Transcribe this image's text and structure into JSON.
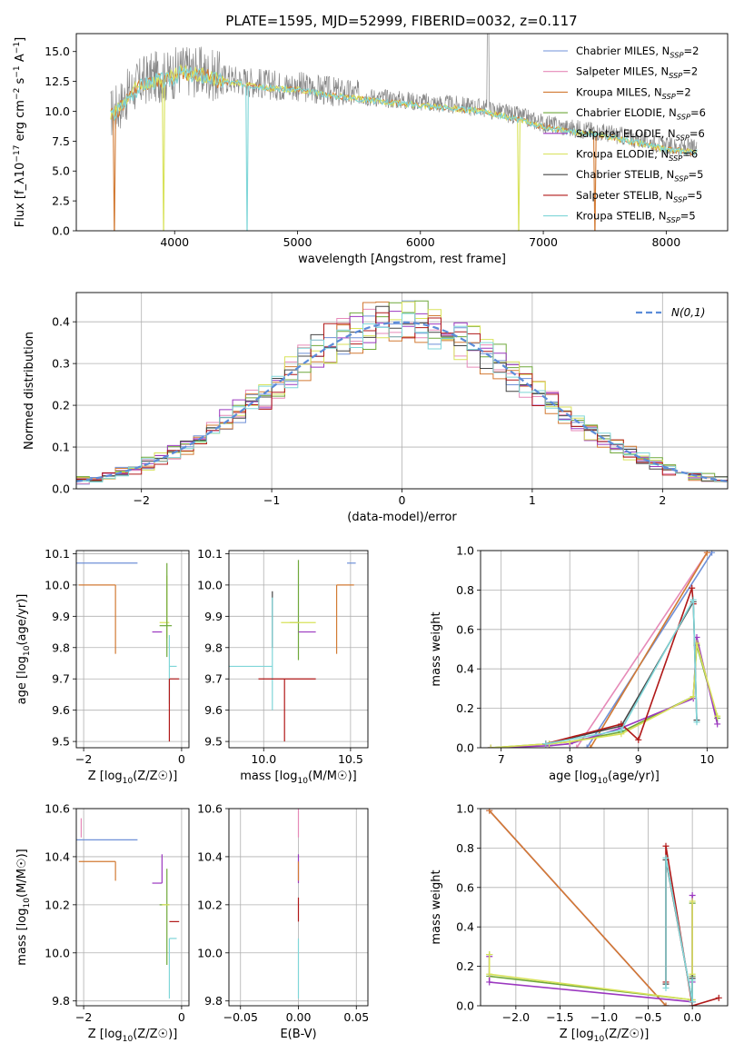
{
  "figure": {
    "title": "PLATE=1595, MJD=52999, FIBERID=0032, z=0.117"
  },
  "series_styles": [
    {
      "name": "Chabrier MILES",
      "legend": "Chabrier MILES, N_SSP=2",
      "color": "#6f90d8"
    },
    {
      "name": "Salpeter MILES",
      "legend": "Salpeter MILES, N_SSP=2",
      "color": "#e68ab8"
    },
    {
      "name": "Kroupa MILES",
      "legend": "Kroupa MILES, N_SSP=2",
      "color": "#d27a33"
    },
    {
      "name": "Chabrier ELODIE",
      "legend": "Chabrier ELODIE, N_SSP=6",
      "color": "#6fa83a"
    },
    {
      "name": "Salpeter ELODIE",
      "legend": "Salpeter ELODIE, N_SSP=6",
      "color": "#9b38c0"
    },
    {
      "name": "Kroupa ELODIE",
      "legend": "Kroupa ELODIE, N_SSP=6",
      "color": "#d8e25a"
    },
    {
      "name": "Chabrier STELIB",
      "legend": "Chabrier STELIB, N_SSP=5",
      "color": "#444444"
    },
    {
      "name": "Salpeter STELIB",
      "legend": "Salpeter STELIB, N_SSP=5",
      "color": "#b01818"
    },
    {
      "name": "Kroupa STELIB",
      "legend": "Kroupa STELIB, N_SSP=5",
      "color": "#7fd6d8"
    }
  ],
  "chart_data": [
    {
      "id": "spectrum",
      "type": "line",
      "xlabel": "wavelength [Angstrom, rest frame]",
      "ylabel": "Flux [f_λ10^-17 erg cm^-2 s^-1 A^-1]",
      "xlim": [
        3200,
        8500
      ],
      "ylim": [
        0,
        16.5
      ],
      "xticks": [
        4000,
        5000,
        6000,
        7000,
        8000
      ],
      "yticks": [
        0.0,
        2.5,
        5.0,
        7.5,
        10.0,
        12.5,
        15.0
      ],
      "grid": false,
      "legend": "top-right",
      "observed": {
        "color": "#888888",
        "x": [
          3480,
          3550,
          3650,
          3750,
          3850,
          3950,
          4050,
          4200,
          4400,
          4600,
          4800,
          5000,
          5300,
          5600,
          5900,
          6200,
          6500,
          6800,
          7000,
          7200,
          7400,
          7600,
          7800,
          8000,
          8200
        ],
        "y": [
          9.8,
          10.5,
          11.8,
          12.6,
          12.9,
          12.9,
          13.5,
          13.3,
          12.8,
          12.5,
          12.2,
          12.1,
          11.6,
          11.2,
          10.9,
          10.6,
          10.3,
          9.6,
          9.0,
          8.6,
          8.4,
          8.0,
          7.6,
          7.1,
          6.9
        ]
      },
      "model_dips": [
        {
          "x": 3510,
          "series": 2
        },
        {
          "x": 3910,
          "series": 5
        },
        {
          "x": 4590,
          "series": 8
        },
        {
          "x": 6800,
          "series": 5
        },
        {
          "x": 7420,
          "series": 2
        }
      ]
    },
    {
      "id": "residuals",
      "type": "step",
      "xlabel": "(data-model)/error",
      "ylabel": "Normed distribution",
      "xlim": [
        -2.5,
        2.5
      ],
      "ylim": [
        0,
        0.47
      ],
      "xticks": [
        -2,
        -1,
        0,
        1,
        2
      ],
      "yticks": [
        0.0,
        0.1,
        0.2,
        0.3,
        0.4
      ],
      "grid": true,
      "legend": "top-right",
      "gaussian": {
        "label": "N(0,1)",
        "color": "#5b8cd8"
      }
    },
    {
      "id": "z-age",
      "type": "errorbar",
      "xlabel": "Z [log10(Z/Z☉)]",
      "ylabel": "age  [log10(age/yr)]",
      "xlim": [
        -2.15,
        0.15
      ],
      "ylim": [
        9.48,
        10.11
      ],
      "xticks": [
        -2,
        0
      ],
      "yticks": [
        9.5,
        9.6,
        9.7,
        9.8,
        9.9,
        10.0,
        10.1
      ],
      "grid": true,
      "points": [
        {
          "s": 0,
          "x": -0.9,
          "xerr": [
            1.25,
            0.0
          ],
          "y": 10.07,
          "yerr": [
            0.0,
            0.0
          ]
        },
        {
          "s": 2,
          "x": -1.35,
          "xerr": [
            0.75,
            0.0
          ],
          "y": 10.0,
          "yerr": [
            0.22,
            0.0
          ]
        },
        {
          "s": 2,
          "x": -0.5,
          "xerr": [
            0.0,
            0.0
          ],
          "y": 10.0,
          "yerr": [
            0.0,
            0.0
          ]
        },
        {
          "s": 5,
          "x": -0.3,
          "xerr": [
            0.15,
            0.05
          ],
          "y": 9.88,
          "yerr": [
            0.05,
            0.15
          ]
        },
        {
          "s": 3,
          "x": -0.3,
          "xerr": [
            0.15,
            0.1
          ],
          "y": 9.87,
          "yerr": [
            0.1,
            0.2
          ]
        },
        {
          "s": 4,
          "x": -0.4,
          "xerr": [
            0.2,
            0.0
          ],
          "y": 9.85,
          "yerr": [
            0.0,
            0.0
          ]
        },
        {
          "s": 8,
          "x": -0.25,
          "xerr": [
            0.0,
            0.15
          ],
          "y": 9.74,
          "yerr": [
            0.12,
            0.1
          ]
        },
        {
          "s": 7,
          "x": -0.25,
          "xerr": [
            0.0,
            0.2
          ],
          "y": 9.7,
          "yerr": [
            0.2,
            0.0
          ]
        }
      ]
    },
    {
      "id": "mass-age",
      "type": "errorbar",
      "xlabel": "mass [log10(M/M☉)]",
      "ylabel": "",
      "xlim": [
        9.8,
        10.6
      ],
      "ylim": [
        9.48,
        10.11
      ],
      "xticks": [
        10.0,
        10.5
      ],
      "yticks": [
        9.5,
        9.6,
        9.7,
        9.8,
        9.9,
        10.0,
        10.1
      ],
      "grid": true,
      "points": [
        {
          "s": 0,
          "x": 10.48,
          "xerr": [
            0.0,
            0.05
          ],
          "y": 10.07,
          "yerr": [
            0.0,
            0.0
          ]
        },
        {
          "s": 1,
          "x": 10.55,
          "xerr": [
            0.0,
            0.0
          ],
          "y": 10.0,
          "yerr": [
            0.0,
            0.0
          ]
        },
        {
          "s": 2,
          "x": 10.42,
          "xerr": [
            0.0,
            0.1
          ],
          "y": 10.0,
          "yerr": [
            0.22,
            0.0
          ]
        },
        {
          "s": 3,
          "x": 10.2,
          "xerr": [
            0.05,
            0.0
          ],
          "y": 9.88,
          "yerr": [
            0.12,
            0.2
          ]
        },
        {
          "s": 5,
          "x": 10.2,
          "xerr": [
            0.1,
            0.1
          ],
          "y": 9.88,
          "yerr": [
            0.0,
            0.0
          ]
        },
        {
          "s": 4,
          "x": 10.3,
          "xerr": [
            0.1,
            0.0
          ],
          "y": 9.85,
          "yerr": [
            0.0,
            0.0
          ]
        },
        {
          "s": 6,
          "x": 10.05,
          "xerr": [
            0.0,
            0.0
          ],
          "y": 9.9,
          "yerr": [
            0.1,
            0.08
          ]
        },
        {
          "s": 8,
          "x": 10.05,
          "xerr": [
            0.25,
            0.0
          ],
          "y": 9.74,
          "yerr": [
            0.14,
            0.22
          ]
        },
        {
          "s": 7,
          "x": 10.12,
          "xerr": [
            0.15,
            0.18
          ],
          "y": 9.7,
          "yerr": [
            0.2,
            0.0
          ]
        }
      ]
    },
    {
      "id": "age-weight",
      "type": "line",
      "xlabel": "age  [log10(age/yr)]",
      "ylabel": "mass weight",
      "xlim": [
        6.7,
        10.3
      ],
      "ylim": [
        0,
        1.0
      ],
      "xticks": [
        7,
        8,
        9,
        10
      ],
      "yticks": [
        0.0,
        0.2,
        0.4,
        0.6,
        0.8,
        1.0
      ],
      "grid": true,
      "series": [
        {
          "s": 0,
          "x": [
            8.25,
            10.07
          ],
          "y": [
            0.0,
            0.99
          ]
        },
        {
          "s": 1,
          "x": [
            8.1,
            10.0
          ],
          "y": [
            0.0,
            0.99
          ]
        },
        {
          "s": 2,
          "x": [
            8.3,
            10.0
          ],
          "y": [
            0.0,
            0.99
          ]
        },
        {
          "s": 3,
          "x": [
            6.85,
            7.7,
            8.0,
            8.75,
            9.8,
            9.85,
            10.15
          ],
          "y": [
            0.0,
            0.02,
            0.03,
            0.08,
            0.26,
            0.52,
            0.15
          ]
        },
        {
          "s": 4,
          "x": [
            6.85,
            7.7,
            8.0,
            8.75,
            9.8,
            9.85,
            10.15
          ],
          "y": [
            0.0,
            0.01,
            0.02,
            0.1,
            0.25,
            0.56,
            0.12
          ]
        },
        {
          "s": 5,
          "x": [
            6.85,
            7.7,
            8.0,
            8.75,
            9.8,
            9.85,
            10.15
          ],
          "y": [
            0.0,
            0.02,
            0.03,
            0.07,
            0.26,
            0.53,
            0.16
          ]
        },
        {
          "s": 6,
          "x": [
            7.65,
            8.75,
            9.8,
            9.85
          ],
          "y": [
            0.02,
            0.11,
            0.74,
            0.14
          ]
        },
        {
          "s": 7,
          "x": [
            7.65,
            8.75,
            9.0,
            9.78,
            9.8
          ],
          "y": [
            0.02,
            0.12,
            0.04,
            0.81,
            0.73
          ]
        },
        {
          "s": 8,
          "x": [
            7.65,
            8.75,
            9.8,
            9.85
          ],
          "y": [
            0.02,
            0.09,
            0.75,
            0.13
          ]
        }
      ]
    },
    {
      "id": "z-mass",
      "type": "errorbar",
      "xlabel": "Z [log10(Z/Z☉)]",
      "ylabel": "mass [log10(M/M☉)]",
      "xlim": [
        -2.15,
        0.15
      ],
      "ylim": [
        9.78,
        10.6
      ],
      "xticks": [
        -2,
        0
      ],
      "yticks": [
        9.8,
        10.0,
        10.2,
        10.4,
        10.6
      ],
      "grid": true,
      "points": [
        {
          "s": 0,
          "x": -0.9,
          "xerr": [
            1.25,
            0.0
          ],
          "y": 10.47,
          "yerr": [
            0.0,
            0.0
          ]
        },
        {
          "s": 1,
          "x": -2.05,
          "xerr": [
            0.0,
            0.0
          ],
          "y": 10.48,
          "yerr": [
            0.0,
            0.08
          ]
        },
        {
          "s": 2,
          "x": -1.35,
          "xerr": [
            0.75,
            0.0
          ],
          "y": 10.38,
          "yerr": [
            0.08,
            0.0
          ]
        },
        {
          "s": 4,
          "x": -0.4,
          "xerr": [
            0.2,
            0.0
          ],
          "y": 10.29,
          "yerr": [
            0.0,
            0.12
          ]
        },
        {
          "s": 3,
          "x": -0.3,
          "xerr": [
            0.15,
            0.05
          ],
          "y": 10.2,
          "yerr": [
            0.25,
            0.15
          ]
        },
        {
          "s": 5,
          "x": -0.3,
          "xerr": [
            0.1,
            0.05
          ],
          "y": 10.2,
          "yerr": [
            0.0,
            0.0
          ]
        },
        {
          "s": 7,
          "x": -0.25,
          "xerr": [
            0.0,
            0.2
          ],
          "y": 10.13,
          "yerr": [
            0.0,
            0.0
          ]
        },
        {
          "s": 8,
          "x": -0.25,
          "xerr": [
            0.0,
            0.15
          ],
          "y": 10.06,
          "yerr": [
            0.25,
            0.0
          ]
        }
      ]
    },
    {
      "id": "ebv-mass",
      "type": "errorbar",
      "xlabel": "E(B-V)",
      "ylabel": "",
      "xlim": [
        -0.06,
        0.06
      ],
      "ylim": [
        9.78,
        10.6
      ],
      "xticks": [
        -0.05,
        0.0,
        0.05
      ],
      "yticks": [
        9.8,
        10.0,
        10.2,
        10.4,
        10.6
      ],
      "grid": true,
      "points": [
        {
          "s": 1,
          "x": 0.0,
          "xerr": [
            0.0,
            0.0
          ],
          "y": 10.48,
          "yerr": [
            0.0,
            0.12
          ]
        },
        {
          "s": 4,
          "x": 0.0,
          "xerr": [
            0.0,
            0.0
          ],
          "y": 10.29,
          "yerr": [
            0.0,
            0.12
          ]
        },
        {
          "s": 2,
          "x": 0.0,
          "xerr": [
            0.0,
            0.0
          ],
          "y": 10.38,
          "yerr": [
            0.08,
            0.0
          ]
        },
        {
          "s": 7,
          "x": 0.0,
          "xerr": [
            0.0,
            0.0
          ],
          "y": 10.13,
          "yerr": [
            0.0,
            0.1
          ]
        },
        {
          "s": 8,
          "x": 0.0,
          "xerr": [
            0.0,
            0.0
          ],
          "y": 10.06,
          "yerr": [
            0.25,
            0.0
          ]
        }
      ]
    },
    {
      "id": "z-weight",
      "type": "line",
      "xlabel": "Z [log10(Z/Z☉)]",
      "ylabel": "mass weight",
      "xlim": [
        -2.4,
        0.4
      ],
      "ylim": [
        0,
        1.0
      ],
      "xticks": [
        -2.0,
        -1.5,
        -1.0,
        -0.5,
        0.0
      ],
      "yticks": [
        0.0,
        0.2,
        0.4,
        0.6,
        0.8,
        1.0
      ],
      "grid": true,
      "series": [
        {
          "s": 0,
          "x": [
            -2.3,
            -0.3
          ],
          "y": [
            0.99,
            0.0
          ]
        },
        {
          "s": 1,
          "x": [
            -2.3,
            -0.3
          ],
          "y": [
            0.99,
            0.0
          ]
        },
        {
          "s": 2,
          "x": [
            -2.3,
            -0.3
          ],
          "y": [
            0.99,
            0.0
          ]
        },
        {
          "s": 3,
          "x": [
            -2.3,
            -2.3,
            0.0,
            0.0,
            0.0
          ],
          "y": [
            0.26,
            0.15,
            0.03,
            0.52,
            0.15
          ]
        },
        {
          "s": 4,
          "x": [
            -2.3,
            -2.3,
            0.0,
            0.0,
            0.0
          ],
          "y": [
            0.25,
            0.12,
            0.02,
            0.56,
            0.12
          ]
        },
        {
          "s": 5,
          "x": [
            -2.3,
            -2.3,
            0.0,
            0.0,
            0.0
          ],
          "y": [
            0.26,
            0.16,
            0.03,
            0.53,
            0.16
          ]
        },
        {
          "s": 6,
          "x": [
            -0.3,
            -0.3,
            0.0,
            0.0
          ],
          "y": [
            0.11,
            0.74,
            0.02,
            0.14
          ]
        },
        {
          "s": 7,
          "x": [
            -0.3,
            -0.3,
            0.0,
            0.3
          ],
          "y": [
            0.12,
            0.81,
            0.0,
            0.04
          ]
        },
        {
          "s": 8,
          "x": [
            -0.3,
            -0.3,
            0.0,
            0.0
          ],
          "y": [
            0.09,
            0.75,
            0.02,
            0.13
          ]
        }
      ]
    }
  ]
}
